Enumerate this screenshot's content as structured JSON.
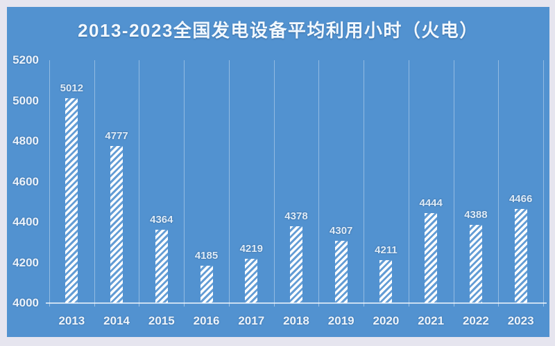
{
  "chart_data": {
    "type": "bar",
    "title": "2013-2023全国发电设备平均利用小时（火电）",
    "categories": [
      "2013",
      "2014",
      "2015",
      "2016",
      "2017",
      "2018",
      "2019",
      "2020",
      "2021",
      "2022",
      "2023"
    ],
    "values": [
      5012,
      4777,
      4364,
      4185,
      4219,
      4378,
      4307,
      4211,
      4444,
      4388,
      4466
    ],
    "ylim": [
      4000,
      5200
    ],
    "yticks": [
      5200,
      5000,
      4800,
      4600,
      4400,
      4200,
      4000
    ],
    "xlabel": "",
    "ylabel": "",
    "grid": "vertical-only",
    "legend": "none",
    "data_labels": "above-bars",
    "bar_style": "white-diagonal-hatch",
    "colors": {
      "page_border": "#E6E5EF",
      "panel_background": "#5292D0",
      "bar_fill": "#FFFFFF",
      "gridline": "rgba(255,255,255,0.38)",
      "axis_line": "rgba(255,255,255,0.70)",
      "title_text": "#F2F8FE",
      "axis_text": "#EAF2FB",
      "data_label_text": "#DFECF8"
    }
  }
}
